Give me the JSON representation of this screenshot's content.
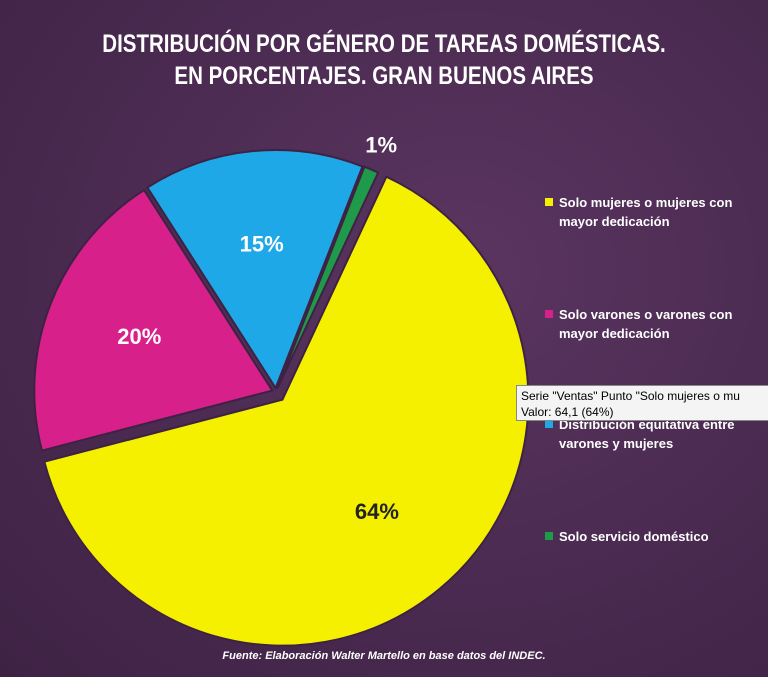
{
  "chart_data": {
    "type": "pie",
    "title": [
      "DISTRIBUCIÓN POR GÉNERO DE TAREAS DOMÉSTICAS.",
      "EN PORCENTAJES. GRAN BUENOS AIRES"
    ],
    "categories": [
      "Solo mujeres o mujeres con mayor dedicación",
      "Solo varones o varones con mayor dedicación",
      "Distribución equitativa entre varones y mujeres",
      "Solo servicio doméstico"
    ],
    "values": [
      64,
      20,
      15,
      1
    ],
    "value_labels": [
      "64%",
      "20%",
      "15%",
      "1%"
    ],
    "colors": [
      "#f5f000",
      "#d8208a",
      "#1ea8e8",
      "#1f9a4a"
    ],
    "source": "Fuente: Elaboración Walter Martello en base datos del INDEC.",
    "tooltip": [
      "Serie \"Ventas\" Punto \"Solo mujeres o mu",
      "Valor: 64,1 (64%)"
    ]
  }
}
